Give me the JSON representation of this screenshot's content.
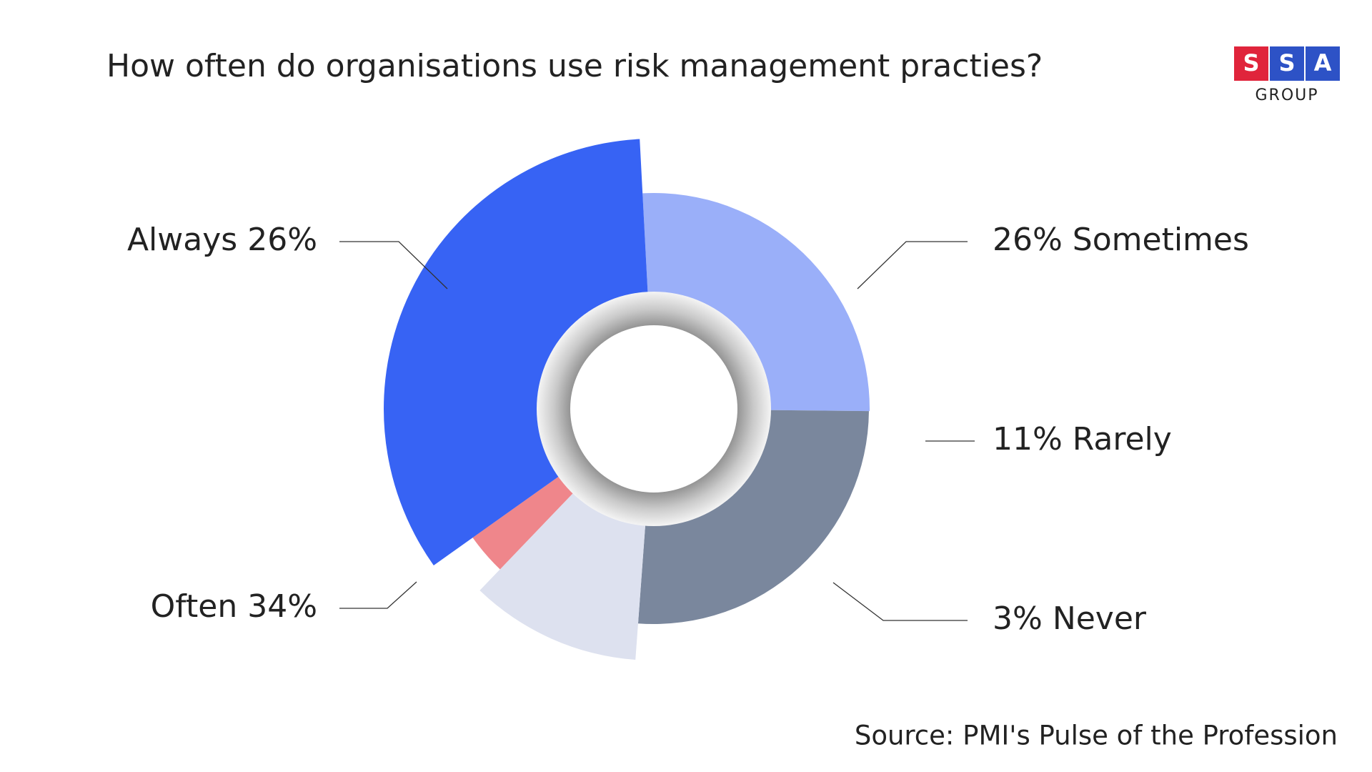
{
  "chart_data": {
    "type": "donut",
    "title": "How often do organisations use risk management practies?",
    "categories": [
      "Always",
      "Sometimes",
      "Rarely",
      "Never",
      "Often"
    ],
    "values": [
      26,
      26,
      11,
      3,
      34
    ],
    "value_labels": [
      "26%",
      "26%",
      "11%",
      "3%",
      "34%"
    ],
    "colors": [
      "#9aaff9",
      "#7a879d",
      "#dde1ef",
      "#ef868b",
      "#3763f4"
    ],
    "source": "Source: PMI's Pulse of the Profession"
  },
  "logo": {
    "letters": [
      "S",
      "S",
      "A"
    ],
    "subtitle": "GROUP"
  }
}
